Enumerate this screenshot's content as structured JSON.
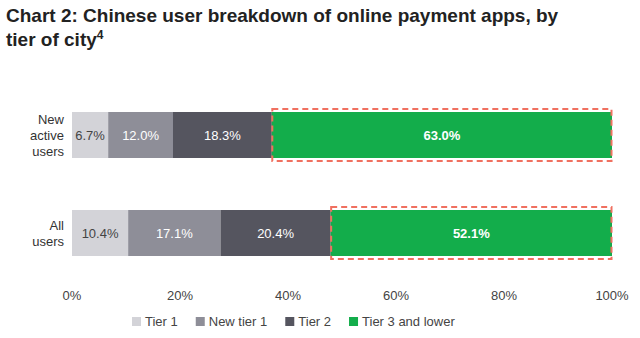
{
  "chart_data": {
    "type": "bar",
    "title": "Chart 2: Chinese user breakdown of online payment apps, by tier of city",
    "title_footnote": "4",
    "orientation": "horizontal",
    "stacked": true,
    "data_labels": true,
    "grid": false,
    "legend": "bottom",
    "categories": [
      "New active users",
      "All users"
    ],
    "xlim": [
      0,
      100
    ],
    "xticks": [
      {
        "value": 0,
        "label": "0%"
      },
      {
        "value": 20,
        "label": "20%"
      },
      {
        "value": 40,
        "label": "40%"
      },
      {
        "value": 60,
        "label": "60%"
      },
      {
        "value": 80,
        "label": "80%"
      },
      {
        "value": 100,
        "label": "100%"
      }
    ],
    "series": [
      {
        "name": "Tier 1",
        "color": "#d3d3d8",
        "values": [
          6.7,
          10.4
        ],
        "value_labels": [
          "6.7%",
          "10.4%"
        ]
      },
      {
        "name": "New tier 1",
        "color": "#8e8e98",
        "values": [
          12.0,
          17.1
        ],
        "value_labels": [
          "12.0%",
          "17.1%"
        ]
      },
      {
        "name": "Tier 2",
        "color": "#55555f",
        "values": [
          18.3,
          20.4
        ],
        "value_labels": [
          "18.3%",
          "20.4%"
        ]
      },
      {
        "name": "Tier 3 and lower",
        "color": "#13ad4b",
        "values": [
          63.0,
          52.1
        ],
        "value_labels": [
          "63.0%",
          "52.1%"
        ]
      }
    ]
  }
}
